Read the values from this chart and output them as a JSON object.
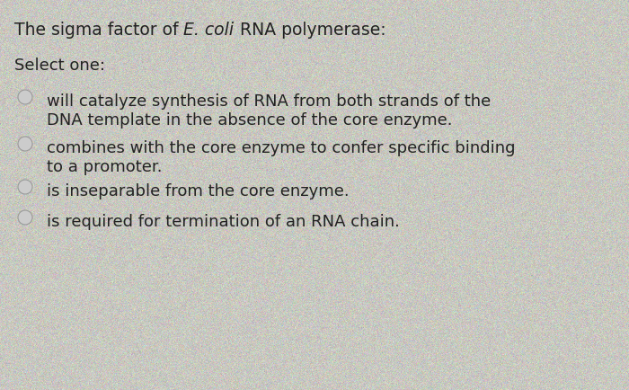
{
  "background_color": "#c8c8c0",
  "noise_color1": "#b8b8b0",
  "noise_color2": "#d8d8d0",
  "title_prefix": "The sigma factor of ",
  "title_ecoli": "E. coli",
  "title_suffix": " RNA polymerase:",
  "select_one": "Select one:",
  "options": [
    [
      "will catalyze synthesis of RNA from both strands of the",
      "DNA template in the absence of the core enzyme."
    ],
    [
      "combines with the core enzyme to confer specific binding",
      "to a promoter."
    ],
    [
      "is inseparable from the core enzyme.",
      null
    ],
    [
      "is required for termination of an RNA chain.",
      null
    ]
  ],
  "text_color": "#222222",
  "radio_color": "#aaaaaa",
  "radio_fill": "#cccccc",
  "title_fontsize": 13.5,
  "body_fontsize": 13,
  "select_fontsize": 13
}
